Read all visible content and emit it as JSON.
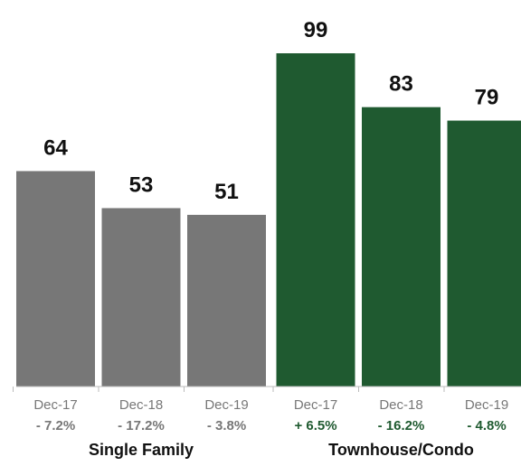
{
  "chart_data": {
    "type": "bar",
    "ylim": [
      0,
      110
    ],
    "groups": [
      {
        "name": "Single Family",
        "color": "#777777",
        "change_color": "#777777",
        "categories": [
          "Dec-17",
          "Dec-18",
          "Dec-19"
        ],
        "values": [
          64,
          53,
          51
        ],
        "changes": [
          "- 7.2%",
          "- 17.2%",
          "- 3.8%"
        ]
      },
      {
        "name": "Townhouse/Condo",
        "color": "#1f5a30",
        "change_color": "#1f5a30",
        "categories": [
          "Dec-17",
          "Dec-18",
          "Dec-19"
        ],
        "values": [
          99,
          83,
          79
        ],
        "changes": [
          "+ 6.5%",
          "- 16.2%",
          "- 4.8%"
        ]
      }
    ]
  }
}
